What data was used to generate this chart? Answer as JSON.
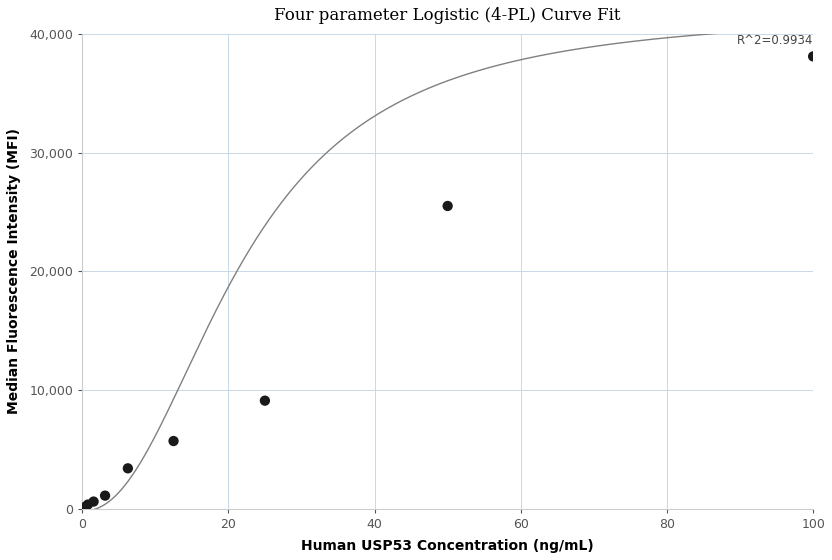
{
  "title": "Four parameter Logistic (4-PL) Curve Fit",
  "xlabel": "Human USP53 Concentration (ng/mL)",
  "ylabel": "Median Fluorescence Intensity (MFI)",
  "scatter_x": [
    0.39,
    0.78,
    1.56,
    3.13,
    6.25,
    12.5,
    25,
    50,
    100
  ],
  "scatter_y": [
    150,
    350,
    600,
    1100,
    3400,
    5700,
    9100,
    25500,
    38100
  ],
  "r_squared": "R^2=0.9934",
  "xlim": [
    -1,
    105
  ],
  "ylim": [
    -500,
    42000
  ],
  "xticks": [
    0,
    20,
    40,
    60,
    80,
    100
  ],
  "yticks": [
    0,
    10000,
    20000,
    30000,
    40000
  ],
  "background_color": "#ffffff",
  "grid_color": "#c8d8e8",
  "scatter_color": "#1a1a1a",
  "curve_color": "#808080",
  "4pl_A": -200,
  "4pl_B": 2.2,
  "4pl_C": 22.0,
  "4pl_D": 42000
}
